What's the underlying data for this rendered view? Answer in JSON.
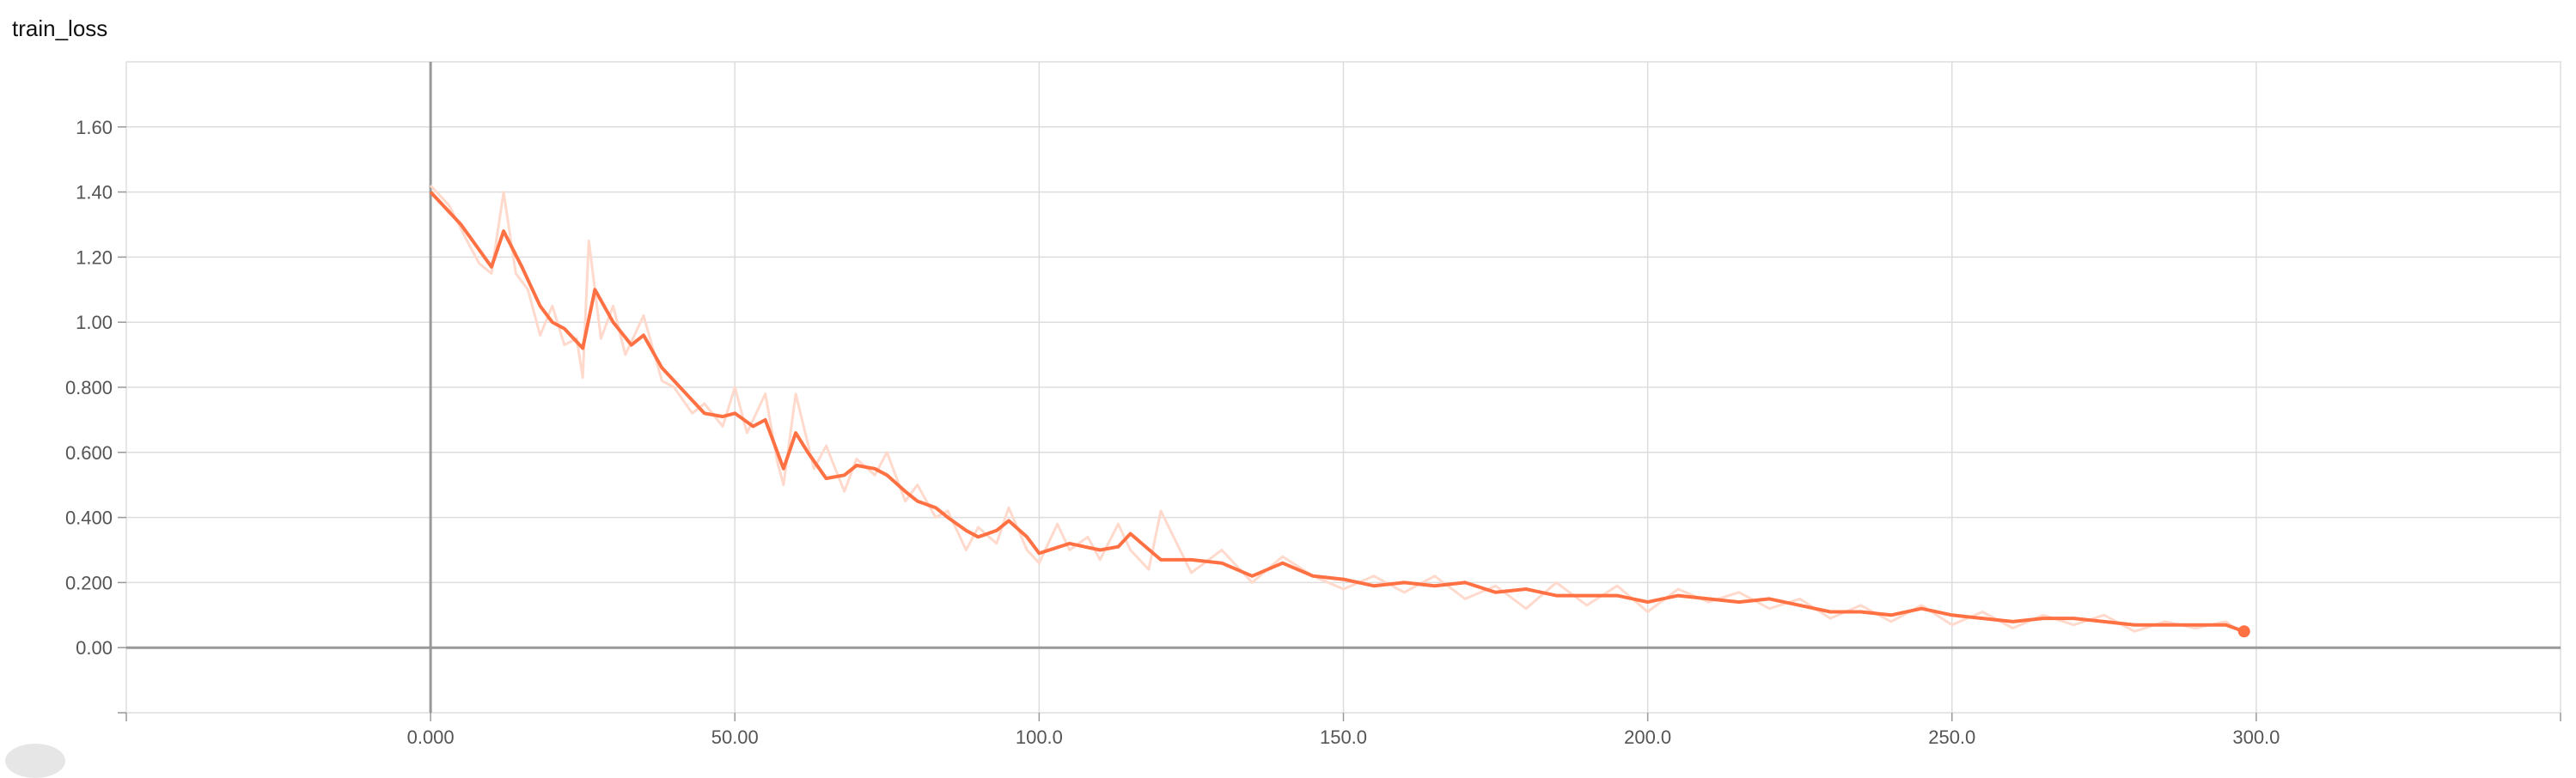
{
  "page": {
    "title": "train_loss"
  },
  "colors": {
    "smoothed": "#ff7043",
    "raw": "#ffd9cc",
    "grid": "#dddddd",
    "axis": "#999999"
  },
  "chart_data": {
    "type": "line",
    "title": "train_loss",
    "xlabel": "",
    "ylabel": "",
    "xlim": [
      -50,
      350
    ],
    "ylim": [
      -0.2,
      1.8
    ],
    "grid": true,
    "legend": "none",
    "x_ticks": [
      0,
      50,
      100,
      150,
      200,
      250,
      300
    ],
    "x_tick_labels": [
      "0.000",
      "50.00",
      "100.0",
      "150.0",
      "200.0",
      "250.0",
      "300.0"
    ],
    "y_ticks": [
      0,
      0.2,
      0.4,
      0.6,
      0.8,
      1.0,
      1.2,
      1.4,
      1.6
    ],
    "y_tick_labels": [
      "0.00",
      "0.200",
      "0.400",
      "0.600",
      "0.800",
      "1.00",
      "1.20",
      "1.40",
      "1.60"
    ],
    "series": [
      {
        "style": "smoothed",
        "x": [
          0,
          5,
          10,
          12,
          15,
          18,
          20,
          22,
          25,
          27,
          30,
          33,
          35,
          38,
          40,
          43,
          45,
          48,
          50,
          53,
          55,
          57,
          58,
          60,
          62,
          65,
          68,
          70,
          73,
          75,
          78,
          80,
          83,
          85,
          88,
          90,
          93,
          95,
          98,
          100,
          105,
          110,
          113,
          115,
          120,
          125,
          130,
          135,
          140,
          145,
          150,
          155,
          160,
          165,
          170,
          175,
          180,
          185,
          190,
          195,
          200,
          205,
          210,
          215,
          220,
          225,
          230,
          235,
          240,
          245,
          250,
          255,
          260,
          265,
          270,
          275,
          280,
          285,
          290,
          295,
          298
        ],
        "y": [
          1.4,
          1.3,
          1.17,
          1.28,
          1.17,
          1.05,
          1.0,
          0.98,
          0.92,
          1.1,
          1.0,
          0.93,
          0.96,
          0.86,
          0.82,
          0.76,
          0.72,
          0.71,
          0.72,
          0.68,
          0.7,
          0.6,
          0.55,
          0.66,
          0.6,
          0.52,
          0.53,
          0.56,
          0.55,
          0.53,
          0.48,
          0.45,
          0.43,
          0.4,
          0.36,
          0.34,
          0.36,
          0.39,
          0.34,
          0.29,
          0.32,
          0.3,
          0.31,
          0.35,
          0.27,
          0.27,
          0.26,
          0.22,
          0.26,
          0.22,
          0.21,
          0.19,
          0.2,
          0.19,
          0.2,
          0.17,
          0.18,
          0.16,
          0.16,
          0.16,
          0.14,
          0.16,
          0.15,
          0.14,
          0.15,
          0.13,
          0.11,
          0.11,
          0.1,
          0.12,
          0.1,
          0.09,
          0.08,
          0.09,
          0.09,
          0.08,
          0.07,
          0.07,
          0.07,
          0.07,
          0.05
        ]
      },
      {
        "style": "raw",
        "x": [
          0,
          3,
          6,
          8,
          10,
          12,
          14,
          16,
          18,
          20,
          22,
          24,
          25,
          26,
          28,
          30,
          32,
          35,
          38,
          40,
          43,
          45,
          48,
          50,
          52,
          55,
          57,
          58,
          60,
          63,
          65,
          68,
          70,
          73,
          75,
          78,
          80,
          83,
          85,
          88,
          90,
          93,
          95,
          98,
          100,
          103,
          105,
          108,
          110,
          113,
          115,
          118,
          120,
          125,
          130,
          135,
          140,
          145,
          150,
          155,
          160,
          165,
          170,
          175,
          180,
          185,
          190,
          195,
          200,
          205,
          210,
          215,
          220,
          225,
          230,
          235,
          240,
          245,
          250,
          255,
          260,
          265,
          270,
          275,
          280,
          285,
          290,
          295,
          298
        ],
        "y": [
          1.42,
          1.36,
          1.25,
          1.18,
          1.15,
          1.4,
          1.15,
          1.1,
          0.96,
          1.05,
          0.93,
          0.95,
          0.83,
          1.25,
          0.95,
          1.05,
          0.9,
          1.02,
          0.82,
          0.8,
          0.72,
          0.75,
          0.68,
          0.8,
          0.66,
          0.78,
          0.57,
          0.5,
          0.78,
          0.55,
          0.62,
          0.48,
          0.58,
          0.53,
          0.6,
          0.45,
          0.5,
          0.4,
          0.42,
          0.3,
          0.37,
          0.32,
          0.43,
          0.3,
          0.26,
          0.38,
          0.3,
          0.34,
          0.27,
          0.38,
          0.3,
          0.24,
          0.42,
          0.23,
          0.3,
          0.2,
          0.28,
          0.22,
          0.18,
          0.22,
          0.17,
          0.22,
          0.15,
          0.19,
          0.12,
          0.2,
          0.13,
          0.19,
          0.11,
          0.18,
          0.14,
          0.17,
          0.12,
          0.15,
          0.09,
          0.13,
          0.08,
          0.13,
          0.07,
          0.11,
          0.06,
          0.1,
          0.07,
          0.1,
          0.05,
          0.08,
          0.06,
          0.08,
          0.04
        ]
      }
    ]
  }
}
